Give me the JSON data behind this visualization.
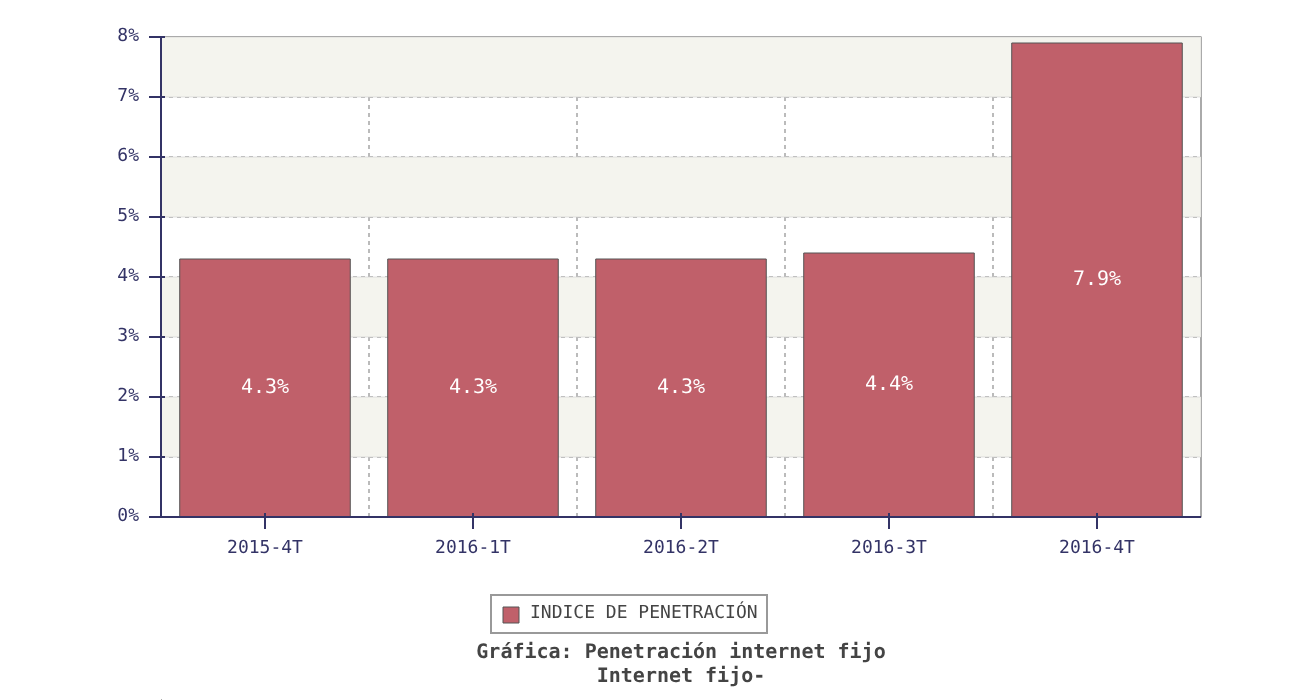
{
  "chart_data": {
    "type": "bar",
    "title": "Gráfica: Penetración internet fijo",
    "subtitle": "Internet fijo-",
    "categories": [
      "2015-4T",
      "2016-1T",
      "2016-2T",
      "2016-3T",
      "2016-4T"
    ],
    "series": [
      {
        "name": "INDICE DE PENETRACIÓN",
        "color": "#c0606a",
        "values": [
          4.3,
          4.3,
          4.3,
          4.4,
          7.9
        ],
        "value_labels": [
          "4.3%",
          "4.3%",
          "4.3%",
          "4.4%",
          "7.9%"
        ]
      }
    ],
    "ylim": [
      0,
      8
    ],
    "yticks": [
      {
        "value": 0,
        "label": "0%"
      },
      {
        "value": 1,
        "label": "1%"
      },
      {
        "value": 2,
        "label": "2%"
      },
      {
        "value": 3,
        "label": "3%"
      },
      {
        "value": 4,
        "label": "4%"
      },
      {
        "value": 5,
        "label": "5%"
      },
      {
        "value": 6,
        "label": "6%"
      },
      {
        "value": 7,
        "label": "7%"
      },
      {
        "value": 8,
        "label": "8%"
      }
    ],
    "bands": [
      {
        "axis": "y",
        "from": 1,
        "to": 2,
        "color": "#f4f4ee"
      },
      {
        "axis": "y",
        "from": 3,
        "to": 4,
        "color": "#f4f4ee"
      },
      {
        "axis": "y",
        "from": 5,
        "to": 6,
        "color": "#f4f4ee"
      },
      {
        "axis": "y",
        "from": 7,
        "to": 8,
        "color": "#f4f4ee"
      }
    ],
    "grid": true,
    "legend": "bottom"
  }
}
